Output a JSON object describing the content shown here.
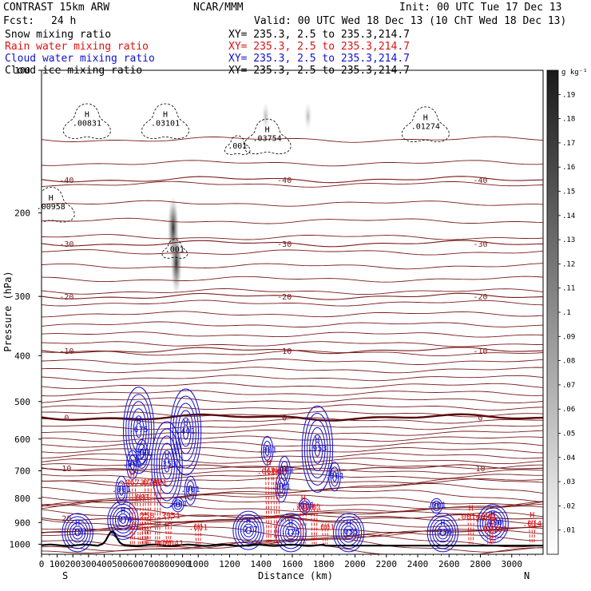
{
  "header": {
    "model": "CONTRAST 15km ARW",
    "org": "NCAR/MMM",
    "init": "Init: 00 UTC Tue 17 Dec 13",
    "fcst_label": "Fcst:",
    "fcst_value": "24 h",
    "valid": "Valid: 00 UTC Wed 18 Dec 13 (10 ChT Wed 18 Dec 13)",
    "fields": [
      {
        "name": "Snow mixing ratio",
        "xy": "XY= 235.3,  2.5 to 235.3,214.7",
        "color": "#000000"
      },
      {
        "name": "Rain water mixing ratio",
        "xy": "XY= 235.3,  2.5 to 235.3,214.7",
        "color": "#e01010"
      },
      {
        "name": "Cloud water mixing ratio",
        "xy": "XY= 235.3,  2.5 to 235.3,214.7",
        "color": "#1010d0"
      },
      {
        "name": "Cloud ice mixing ratio",
        "xy": "XY= 235.3,  2.5 to 235.3,214.7",
        "color": "#000000"
      }
    ]
  },
  "colors": {
    "temperature": "#7a1a1a",
    "zero_isotherm": "#5a0a0a",
    "cloud_water": "#1010d0",
    "rain_water": "#e01010",
    "cloud_ice": "#000000",
    "terrain": "#000000"
  },
  "chart_data": {
    "type": "heatmap",
    "x_axis": {
      "label": "Distance (km)",
      "range": [
        0,
        3200
      ],
      "ticks": [
        0,
        100,
        200,
        300,
        400,
        500,
        600,
        700,
        800,
        900,
        1000,
        1200,
        1400,
        1600,
        1800,
        2000,
        2200,
        2400,
        2600,
        2800,
        3000
      ],
      "left_end": "S",
      "right_end": "N"
    },
    "y_axis": {
      "label": "Pressure (hPa)",
      "range": [
        1050,
        100
      ],
      "scale": "log",
      "ticks": [
        100,
        200,
        300,
        400,
        500,
        600,
        700,
        800,
        900,
        1000
      ]
    },
    "colorbar": {
      "unit": "g kg⁻¹",
      "range": [
        0,
        0.2
      ],
      "ticks": [
        ".01",
        ".02",
        ".03",
        ".04",
        ".05",
        ".06",
        ".07",
        ".08",
        ".09",
        ".1",
        ".11",
        ".12",
        ".13",
        ".14",
        ".15",
        ".16",
        ".17",
        ".18",
        ".19"
      ]
    },
    "temperature_contours": [
      {
        "value": -40,
        "label": "-40",
        "p": 170
      },
      {
        "value": -30,
        "label": "-30",
        "p": 232
      },
      {
        "value": -20,
        "label": "-20",
        "p": 300
      },
      {
        "value": -10,
        "label": "-10",
        "p": 390
      },
      {
        "value": 0,
        "label": "0",
        "p": 540
      },
      {
        "value": 10,
        "label": "10",
        "p": 690
      },
      {
        "value": 20,
        "label": "20",
        "p": 880
      }
    ],
    "snow_maxima": [
      {
        "x": 840,
        "p": 215
      },
      {
        "x": 860,
        "p": 255
      },
      {
        "x": 1430,
        "p": 125
      },
      {
        "x": 1700,
        "p": 125
      }
    ],
    "cloud_ice_maxima": [
      {
        "label": "H",
        "value": ".00831",
        "x": 290,
        "p": 130
      },
      {
        "label": "H",
        "value": ".00958",
        "x": 60,
        "p": 195
      },
      {
        "label": "H",
        "value": ".03101",
        "x": 790,
        "p": 130
      },
      {
        "label": "H",
        "value": ".03754",
        "x": 1440,
        "p": 140
      },
      {
        "label": "H",
        "value": ".01274",
        "x": 2450,
        "p": 132
      },
      {
        "label": "",
        "value": ".001",
        "x": 1250,
        "p": 145
      },
      {
        "label": "",
        "value": ".001",
        "x": 850,
        "p": 240
      }
    ],
    "cloud_water_maxima": [
      {
        "label": "H",
        "value": ".675",
        "x": 620,
        "p": 575
      },
      {
        "label": "H",
        "value": ".401",
        "x": 920,
        "p": 580
      },
      {
        "label": "H",
        "value": ".353",
        "x": 800,
        "p": 680
      },
      {
        "label": "H",
        "value": ".953",
        "x": 1760,
        "p": 630
      },
      {
        "label": "",
        "value": ".001",
        "x": 1440,
        "p": 635
      },
      {
        "label": "",
        "value": ".001",
        "x": 640,
        "p": 645
      },
      {
        "label": "",
        "value": ".001",
        "x": 580,
        "p": 680
      },
      {
        "label": "",
        "value": ".001",
        "x": 510,
        "p": 770
      },
      {
        "label": "",
        "value": ".001",
        "x": 950,
        "p": 770
      },
      {
        "label": "",
        "value": ".001",
        "x": 870,
        "p": 825
      },
      {
        "label": "",
        "value": ".001",
        "x": 1530,
        "p": 760
      },
      {
        "label": "",
        "value": ".001",
        "x": 1550,
        "p": 700
      },
      {
        "label": "",
        "value": ".001",
        "x": 1680,
        "p": 830
      },
      {
        "label": "",
        "value": ".001",
        "x": 1870,
        "p": 720
      },
      {
        "label": "",
        "value": ".001",
        "x": 2520,
        "p": 830
      },
      {
        "label": "H",
        "value": ".076",
        "x": 520,
        "p": 890
      },
      {
        "label": "H",
        "value": ".187",
        "x": 230,
        "p": 945
      },
      {
        "label": "H",
        "value": ".217",
        "x": 1320,
        "p": 935
      },
      {
        "label": "H",
        "value": ".125",
        "x": 1590,
        "p": 945
      },
      {
        "label": "H",
        "value": ".055",
        "x": 1960,
        "p": 945
      },
      {
        "label": "H",
        "value": ".236",
        "x": 2560,
        "p": 945
      },
      {
        "label": "H",
        "value": ".480",
        "x": 2880,
        "p": 905
      }
    ],
    "rain_water_maxima": [
      {
        "label": "H",
        "value": ".0674",
        "x": 1450,
        "p": 705
      },
      {
        "label": "",
        "value": ".067",
        "x": 1500,
        "p": 705
      },
      {
        "label": "H",
        "value": ".0673",
        "x": 580,
        "p": 745
      },
      {
        "label": "",
        "value": ".078",
        "x": 680,
        "p": 745
      },
      {
        "label": "",
        "value": ".001",
        "x": 740,
        "p": 745
      },
      {
        "label": "",
        "value": ".001",
        "x": 630,
        "p": 800
      },
      {
        "label": "H",
        "value": ".2407",
        "x": 1670,
        "p": 840
      },
      {
        "label": "",
        "value": ".01",
        "x": 1740,
        "p": 840
      },
      {
        "label": "",
        "value": ".258",
        "x": 660,
        "p": 875
      },
      {
        "label": "",
        "value": ".3951",
        "x": 810,
        "p": 875
      },
      {
        "label": "H",
        "value": ".00148",
        "x": 2740,
        "p": 880
      },
      {
        "label": "",
        "value": ".01",
        "x": 2860,
        "p": 880
      },
      {
        "label": "H",
        "value": ".00189",
        "x": 2880,
        "p": 935
      },
      {
        "label": "H",
        "value": ".014",
        "x": 3130,
        "p": 910
      },
      {
        "label": "",
        "value": ".000041",
        "x": 800,
        "p": 1000
      },
      {
        "label": "",
        "value": ".001",
        "x": 1000,
        "p": 925
      },
      {
        "label": "",
        "value": ".001",
        "x": 1810,
        "p": 925
      }
    ]
  }
}
